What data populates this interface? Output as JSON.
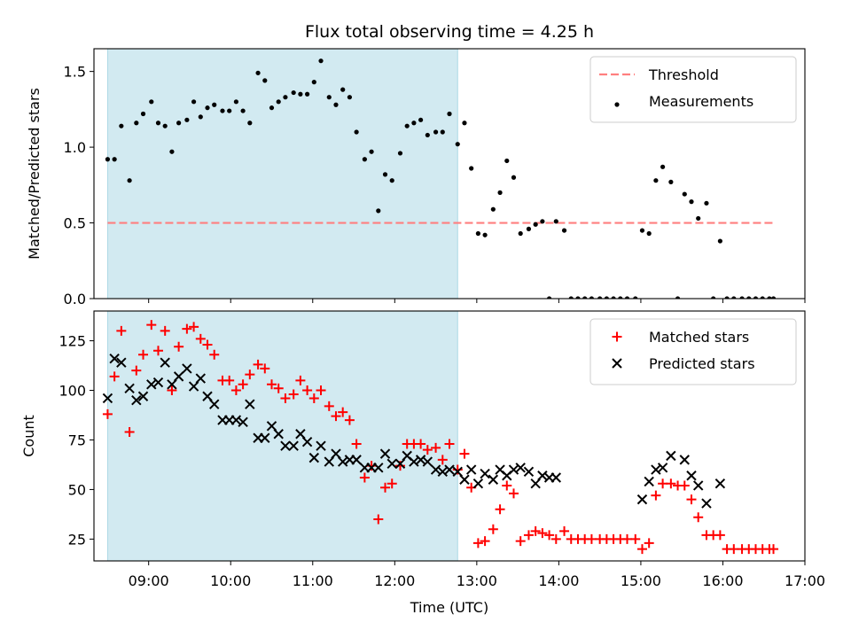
{
  "chart_data": [
    {
      "type": "scatter",
      "title": "Flux total observing time = 4.25 h",
      "xlabel": "",
      "ylabel": "Matched/Predicted stars",
      "xlim": [
        "08:20",
        "17:00"
      ],
      "ylim": [
        0,
        1.65
      ],
      "yticks": [
        0.0,
        0.5,
        1.0,
        1.5
      ],
      "ytick_labels": [
        "0.0",
        "0.5",
        "1.0",
        "1.5"
      ],
      "xticks": [
        "09:00",
        "10:00",
        "11:00",
        "12:00",
        "13:00",
        "14:00",
        "15:00",
        "16:00",
        "17:00"
      ],
      "shaded_interval": [
        "08:30",
        "12:46"
      ],
      "shade_color": "#add8e6",
      "legend_position": "top-right",
      "threshold": {
        "name": "Threshold",
        "value": 0.5,
        "x_range": [
          "08:30",
          "16:37"
        ],
        "color": "#ff7f7f"
      },
      "series": [
        {
          "name": "Measurements",
          "color": "#000000",
          "marker": "dot",
          "x": [
            "08:30",
            "08:35",
            "08:40",
            "08:46",
            "08:51",
            "08:56",
            "09:02",
            "09:07",
            "09:12",
            "09:17",
            "09:22",
            "09:28",
            "09:33",
            "09:38",
            "09:43",
            "09:48",
            "09:54",
            "09:59",
            "10:04",
            "10:09",
            "10:14",
            "10:20",
            "10:25",
            "10:30",
            "10:35",
            "10:40",
            "10:46",
            "10:51",
            "10:56",
            "11:01",
            "11:06",
            "11:12",
            "11:17",
            "11:22",
            "11:27",
            "11:32",
            "11:38",
            "11:43",
            "11:48",
            "11:53",
            "11:58",
            "12:04",
            "12:09",
            "12:14",
            "12:19",
            "12:24",
            "12:30",
            "12:35",
            "12:40",
            "12:46",
            "12:51",
            "12:56",
            "13:01",
            "13:06",
            "13:12",
            "13:17",
            "13:22",
            "13:27",
            "13:32",
            "13:38",
            "13:43",
            "13:48",
            "13:53",
            "13:58",
            "14:04",
            "14:09",
            "14:14",
            "14:19",
            "14:24",
            "14:30",
            "14:35",
            "14:40",
            "14:45",
            "14:50",
            "14:56",
            "15:01",
            "15:06",
            "15:11",
            "15:16",
            "15:22",
            "15:27",
            "15:32",
            "15:37",
            "15:42",
            "15:48",
            "15:53",
            "15:58",
            "16:03",
            "16:08",
            "16:14",
            "16:19",
            "16:24",
            "16:29",
            "16:34",
            "16:37"
          ],
          "y": [
            0.92,
            0.92,
            1.14,
            0.78,
            1.16,
            1.22,
            1.3,
            1.16,
            1.14,
            0.97,
            1.16,
            1.18,
            1.3,
            1.2,
            1.26,
            1.28,
            1.24,
            1.24,
            1.3,
            1.24,
            1.16,
            1.49,
            1.44,
            1.26,
            1.3,
            1.33,
            1.36,
            1.35,
            1.35,
            1.43,
            1.57,
            1.33,
            1.28,
            1.38,
            1.33,
            1.1,
            0.92,
            0.97,
            0.58,
            0.82,
            0.78,
            0.96,
            1.14,
            1.16,
            1.18,
            1.08,
            1.1,
            1.1,
            1.22,
            1.02,
            1.16,
            0.86,
            0.43,
            0.42,
            0.59,
            0.7,
            0.91,
            0.8,
            0.43,
            0.46,
            0.49,
            0.51,
            0.0,
            0.51,
            0.45,
            0.0,
            0.0,
            0.0,
            0.0,
            0.0,
            0.0,
            0.0,
            0.0,
            0.0,
            0.0,
            0.45,
            0.43,
            0.78,
            0.87,
            0.77,
            0.0,
            0.69,
            0.64,
            0.53,
            0.63,
            0.0,
            0.38,
            0.0,
            0.0,
            0.0,
            0.0,
            0.0,
            0.0,
            0.0,
            0.0
          ]
        }
      ]
    },
    {
      "type": "scatter",
      "title": "",
      "xlabel": "Time (UTC)",
      "ylabel": "Count",
      "xlim": [
        "08:20",
        "17:00"
      ],
      "ylim": [
        14,
        140
      ],
      "yticks": [
        25,
        50,
        75,
        100,
        125
      ],
      "ytick_labels": [
        "25",
        "50",
        "75",
        "100",
        "125"
      ],
      "xticks": [
        "09:00",
        "10:00",
        "11:00",
        "12:00",
        "13:00",
        "14:00",
        "15:00",
        "16:00",
        "17:00"
      ],
      "xtick_labels": [
        "09:00",
        "10:00",
        "11:00",
        "12:00",
        "13:00",
        "14:00",
        "15:00",
        "16:00",
        "17:00"
      ],
      "shaded_interval": [
        "08:30",
        "12:46"
      ],
      "shade_color": "#add8e6",
      "legend_position": "top-right",
      "series": [
        {
          "name": "Matched stars",
          "color": "#ff0000",
          "marker": "plus",
          "x": [
            "08:30",
            "08:35",
            "08:40",
            "08:46",
            "08:51",
            "08:56",
            "09:02",
            "09:07",
            "09:12",
            "09:17",
            "09:22",
            "09:28",
            "09:33",
            "09:38",
            "09:43",
            "09:48",
            "09:54",
            "09:59",
            "10:04",
            "10:09",
            "10:14",
            "10:20",
            "10:25",
            "10:30",
            "10:35",
            "10:40",
            "10:46",
            "10:51",
            "10:56",
            "11:01",
            "11:06",
            "11:12",
            "11:17",
            "11:22",
            "11:27",
            "11:32",
            "11:38",
            "11:43",
            "11:48",
            "11:53",
            "11:58",
            "12:04",
            "12:09",
            "12:14",
            "12:19",
            "12:24",
            "12:30",
            "12:35",
            "12:40",
            "12:46",
            "12:51",
            "12:56",
            "13:01",
            "13:06",
            "13:12",
            "13:17",
            "13:22",
            "13:27",
            "13:32",
            "13:38",
            "13:43",
            "13:48",
            "13:53",
            "13:58",
            "14:04",
            "14:09",
            "14:14",
            "14:19",
            "14:24",
            "14:30",
            "14:35",
            "14:40",
            "14:45",
            "14:50",
            "14:56",
            "15:01",
            "15:06",
            "15:11",
            "15:16",
            "15:22",
            "15:27",
            "15:32",
            "15:37",
            "15:42",
            "15:48",
            "15:53",
            "15:58",
            "16:03",
            "16:08",
            "16:14",
            "16:19",
            "16:24",
            "16:29",
            "16:34",
            "16:37"
          ],
          "y": [
            88,
            107,
            130,
            79,
            110,
            118,
            133,
            120,
            130,
            100,
            122,
            131,
            132,
            126,
            123,
            118,
            105,
            105,
            100,
            103,
            108,
            113,
            111,
            103,
            101,
            96,
            98,
            105,
            100,
            96,
            100,
            92,
            87,
            89,
            85,
            73,
            56,
            62,
            35,
            51,
            53,
            62,
            73,
            73,
            73,
            70,
            71,
            65,
            73,
            60,
            68,
            51,
            23,
            24,
            30,
            40,
            52,
            48,
            24,
            27,
            29,
            28,
            27,
            25,
            29,
            25,
            25,
            25,
            25,
            25,
            25,
            25,
            25,
            25,
            25,
            20,
            23,
            47,
            53,
            53,
            52,
            52,
            45,
            36,
            27,
            27,
            27,
            20,
            20,
            20,
            20,
            20,
            20,
            20,
            20
          ]
        },
        {
          "name": "Predicted stars",
          "color": "#000000",
          "marker": "cross",
          "x": [
            "08:30",
            "08:35",
            "08:40",
            "08:46",
            "08:51",
            "08:56",
            "09:02",
            "09:07",
            "09:12",
            "09:17",
            "09:22",
            "09:28",
            "09:33",
            "09:38",
            "09:43",
            "09:48",
            "09:54",
            "09:59",
            "10:04",
            "10:09",
            "10:14",
            "10:20",
            "10:25",
            "10:30",
            "10:35",
            "10:40",
            "10:46",
            "10:51",
            "10:56",
            "11:01",
            "11:06",
            "11:12",
            "11:17",
            "11:22",
            "11:27",
            "11:32",
            "11:38",
            "11:43",
            "11:48",
            "11:53",
            "11:58",
            "12:04",
            "12:09",
            "12:14",
            "12:19",
            "12:24",
            "12:30",
            "12:35",
            "12:40",
            "12:46",
            "12:51",
            "12:56",
            "13:01",
            "13:06",
            "13:12",
            "13:17",
            "13:22",
            "13:27",
            "13:32",
            "13:38",
            "13:43",
            "13:48",
            "13:53",
            "13:58",
            "15:01",
            "15:06",
            "15:11",
            "15:16",
            "15:22",
            "15:32",
            "15:37",
            "15:42",
            "15:48",
            "15:58"
          ],
          "y": [
            96,
            116,
            114,
            101,
            95,
            97,
            103,
            104,
            114,
            103,
            107,
            111,
            102,
            106,
            97,
            93,
            85,
            85,
            85,
            84,
            93,
            76,
            76,
            82,
            78,
            72,
            72,
            78,
            74,
            66,
            72,
            64,
            68,
            64,
            65,
            65,
            61,
            61,
            61,
            68,
            63,
            63,
            67,
            64,
            65,
            64,
            60,
            59,
            60,
            59,
            55,
            60,
            53,
            58,
            55,
            60,
            57,
            60,
            61,
            59,
            53,
            57,
            56,
            56,
            45,
            54,
            60,
            61,
            67,
            65,
            57,
            52,
            43,
            53
          ]
        }
      ]
    }
  ]
}
